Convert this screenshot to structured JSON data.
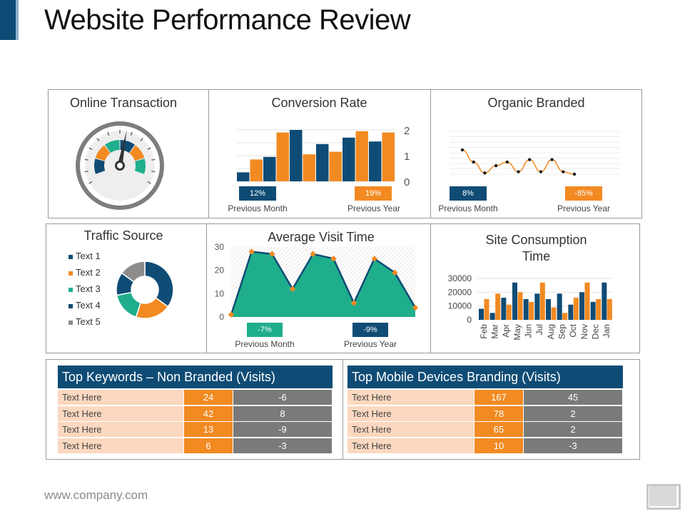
{
  "title": "Website Performance Review",
  "footer": "www.company.com",
  "colors": {
    "navy": "#0f4c75",
    "orange": "#f28a22",
    "teal": "#1fae8c",
    "gray": "#8c8c8c"
  },
  "online_transaction": {
    "title": "Online Transaction"
  },
  "conversion_rate": {
    "title": "Conversion Rate",
    "left_pill": "12%",
    "right_pill": "19%",
    "left_label": "Previous Month",
    "right_label": "Previous Year"
  },
  "organic_branded": {
    "title": "Organic Branded",
    "left_pill": "8%",
    "right_pill": "-85%",
    "left_label": "Previous Month",
    "right_label": "Previous Year"
  },
  "traffic_source": {
    "title": "Traffic Source",
    "legend": [
      "Text 1",
      "Text 2",
      "Text 3",
      "Text 4",
      "Text 5"
    ]
  },
  "average_visit_time": {
    "title": "Average Visit Time",
    "left_pill": "-7%",
    "right_pill": "-9%",
    "left_label": "Previous Month",
    "right_label": "Previous Year"
  },
  "site_consumption": {
    "title_line1": "Site Consumption",
    "title_line2": "Time"
  },
  "keywords_table": {
    "title": "Top Keywords – Non Branded (Visits)",
    "rows": [
      {
        "label": "Text Here",
        "v1": "24",
        "v2": "-6"
      },
      {
        "label": "Text Here",
        "v1": "42",
        "v2": "8"
      },
      {
        "label": "Text Here",
        "v1": "13",
        "v2": "-9"
      },
      {
        "label": "Text Here",
        "v1": "6",
        "v2": "-3"
      }
    ]
  },
  "mobile_table": {
    "title": "Top Mobile Devices Branding (Visits)",
    "rows": [
      {
        "label": "Text Here",
        "v1": "167",
        "v2": "45"
      },
      {
        "label": "Text Here",
        "v1": "78",
        "v2": "2"
      },
      {
        "label": "Text Here",
        "v1": "65",
        "v2": "2"
      },
      {
        "label": "Text Here",
        "v1": "10",
        "v2": "-3"
      }
    ]
  },
  "chart_data": [
    {
      "type": "gauge",
      "name": "Online Transaction",
      "segments": [
        "#0f4c75",
        "#f28a22",
        "#1fae8c",
        "#0f4c75",
        "#f28a22",
        "#1fae8c"
      ],
      "needle_value": 0.55
    },
    {
      "type": "bar",
      "name": "Conversion Rate",
      "ylim": [
        0,
        2
      ],
      "ticks": [
        "2",
        "1",
        "0"
      ],
      "values": [
        0.35,
        0.85,
        0.95,
        1.9,
        2.0,
        1.05,
        1.45,
        1.15,
        1.7,
        1.95,
        1.55,
        1.9
      ],
      "colors": [
        "#0f4c75",
        "#f28a22",
        "#0f4c75",
        "#f28a22",
        "#0f4c75",
        "#f28a22",
        "#0f4c75",
        "#f28a22",
        "#0f4c75",
        "#f28a22",
        "#0f4c75",
        "#f28a22"
      ]
    },
    {
      "type": "line",
      "name": "Organic Branded",
      "values": [
        1.0,
        0.5,
        0.05,
        0.35,
        0.5,
        0.1,
        0.6,
        0.1,
        0.6,
        0.1,
        0.0
      ]
    },
    {
      "type": "pie",
      "name": "Traffic Source",
      "categories": [
        "Text 1",
        "Text 2",
        "Text 3",
        "Text 4",
        "Text 5"
      ],
      "values": [
        35,
        20,
        17,
        13,
        15
      ],
      "colors": [
        "#0f4c75",
        "#f28a22",
        "#1fae8c",
        "#0f4c75",
        "#8c8c8c"
      ]
    },
    {
      "type": "area",
      "name": "Average Visit Time",
      "ylim": [
        0,
        30
      ],
      "ticks": [
        "30",
        "20",
        "10",
        "0"
      ],
      "values": [
        1,
        28,
        27,
        12,
        27,
        25,
        6,
        25,
        19,
        4
      ]
    },
    {
      "type": "bar",
      "name": "Site Consumption Time",
      "categories": [
        "Feb",
        "Mar",
        "Apr",
        "May",
        "Jun",
        "Jul",
        "Aug",
        "Sep",
        "Oct",
        "Nov",
        "Dec",
        "Jan"
      ],
      "ylim": [
        0,
        30000
      ],
      "ticks": [
        "30000",
        "20000",
        "10000",
        "0"
      ],
      "series": [
        {
          "values": [
            8000,
            5000,
            16000,
            27000,
            15000,
            19000,
            15000,
            19000,
            11000,
            20000,
            13000,
            27000
          ]
        },
        {
          "values": [
            15000,
            19000,
            11000,
            20000,
            13000,
            27000,
            9000,
            5000,
            16000,
            27000,
            15000,
            15000
          ]
        }
      ],
      "colors": [
        "#0f4c75",
        "#f28a22"
      ]
    }
  ]
}
